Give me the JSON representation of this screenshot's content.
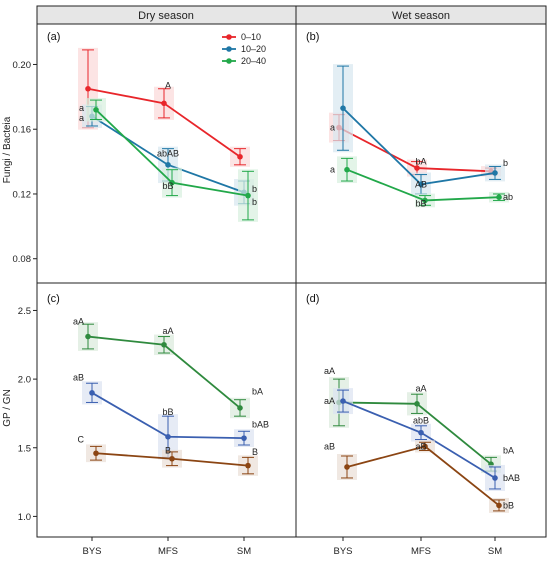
{
  "strips": {
    "dry": "Dry season",
    "wet": "Wet season"
  },
  "panel_tags": {
    "a": "(a)",
    "b": "(b)",
    "c": "(c)",
    "d": "(d)"
  },
  "axis_titles": {
    "top_y": "Fungi / Bacteia",
    "bottom_y": "GP / GN"
  },
  "chart_data": [
    {
      "type": "line",
      "panel": "(a)",
      "strip": "Dry season",
      "ylabel": "Fungi / Bacteia",
      "ylim": [
        0.065,
        0.225
      ],
      "yticks": [
        "0.08",
        "0.12",
        "0.16",
        "0.20"
      ],
      "categories": [
        "BYS",
        "MFS",
        "SM"
      ],
      "legend": {
        "placement": "top-right",
        "labels": [
          "0–10",
          "10–20",
          "20–40"
        ]
      },
      "series": [
        {
          "name": "0–10",
          "color": "#e8262b",
          "values": [
            0.185,
            0.176,
            0.143
          ],
          "err": [
            0.024,
            0.009,
            0.005
          ]
        },
        {
          "name": "10–20",
          "color": "#1f77a6",
          "values": [
            0.168,
            0.138,
            0.121
          ],
          "err": [
            0.006,
            0.01,
            0.007
          ]
        },
        {
          "name": "20–40",
          "color": "#22a84a",
          "values": [
            0.172,
            0.127,
            0.119
          ],
          "err": [
            0.006,
            0.008,
            0.015
          ]
        }
      ],
      "annotations": [
        {
          "text": "a",
          "cat": 0,
          "value": 0.173
        },
        {
          "text": "a",
          "cat": 0,
          "value": 0.167
        },
        {
          "text": "A",
          "cat": 1,
          "value": 0.187
        },
        {
          "text": "abAB",
          "cat": 1,
          "value": 0.145
        },
        {
          "text": "bB",
          "cat": 1,
          "value": 0.125
        },
        {
          "text": "b",
          "cat": 2,
          "value": 0.123
        },
        {
          "text": "b",
          "cat": 2,
          "value": 0.115
        }
      ]
    },
    {
      "type": "line",
      "panel": "(b)",
      "strip": "Wet season",
      "ylim": [
        0.065,
        0.225
      ],
      "categories": [
        "BYS",
        "MFS",
        "SM"
      ],
      "series": [
        {
          "name": "0–10",
          "color": "#e8262b",
          "values": [
            0.161,
            0.136,
            0.134
          ],
          "err": [
            0.008,
            0.004,
            0.002
          ]
        },
        {
          "name": "10–20",
          "color": "#1f77a6",
          "values": [
            0.173,
            0.126,
            0.133
          ],
          "err": [
            0.026,
            0.006,
            0.004
          ]
        },
        {
          "name": "20–40",
          "color": "#22a84a",
          "values": [
            0.135,
            0.116,
            0.118
          ],
          "err": [
            0.007,
            0.003,
            0.002
          ]
        }
      ],
      "annotations": [
        {
          "text": "a",
          "cat": 0,
          "value": 0.161
        },
        {
          "text": "a",
          "cat": 0,
          "value": 0.135
        },
        {
          "text": "bA",
          "cat": 1,
          "value": 0.14
        },
        {
          "text": "AB",
          "cat": 1,
          "value": 0.126
        },
        {
          "text": "bB",
          "cat": 1,
          "value": 0.114
        },
        {
          "text": "b",
          "cat": 2,
          "value": 0.139
        },
        {
          "text": "ab",
          "cat": 2,
          "value": 0.118
        }
      ]
    },
    {
      "type": "line",
      "panel": "(c)",
      "strip": "Dry season",
      "ylabel": "GP / GN",
      "ylim": [
        0.85,
        2.7
      ],
      "yticks": [
        "1.0",
        "1.5",
        "2.0",
        "2.5"
      ],
      "xticks": [
        "BYS",
        "MFS",
        "SM"
      ],
      "categories": [
        "BYS",
        "MFS",
        "SM"
      ],
      "series": [
        {
          "color": "#2f8a3e",
          "values": [
            2.31,
            2.25,
            1.79
          ],
          "err": [
            0.09,
            0.06,
            0.06
          ]
        },
        {
          "color": "#3a5fb0",
          "values": [
            1.9,
            1.58,
            1.57
          ],
          "err": [
            0.07,
            0.15,
            0.05
          ]
        },
        {
          "color": "#8b4513",
          "values": [
            1.46,
            1.42,
            1.37
          ],
          "err": [
            0.05,
            0.05,
            0.06
          ]
        }
      ],
      "annotations": [
        {
          "text": "aA",
          "cat": 0,
          "value": 2.42
        },
        {
          "text": "aB",
          "cat": 0,
          "value": 2.01
        },
        {
          "text": "C",
          "cat": 0,
          "value": 1.56
        },
        {
          "text": "aA",
          "cat": 1,
          "value": 2.35
        },
        {
          "text": "bB",
          "cat": 1,
          "value": 1.76
        },
        {
          "text": "B",
          "cat": 1,
          "value": 1.48
        },
        {
          "text": "bA",
          "cat": 2,
          "value": 1.91
        },
        {
          "text": "bAB",
          "cat": 2,
          "value": 1.67
        },
        {
          "text": "B",
          "cat": 2,
          "value": 1.47
        }
      ]
    },
    {
      "type": "line",
      "panel": "(d)",
      "strip": "Wet season",
      "ylim": [
        0.85,
        2.7
      ],
      "xticks": [
        "BYS",
        "MFS",
        "SM"
      ],
      "categories": [
        "BYS",
        "MFS",
        "SM"
      ],
      "series": [
        {
          "color": "#2f8a3e",
          "values": [
            1.83,
            1.82,
            1.38
          ],
          "err": [
            0.17,
            0.07,
            0.05
          ]
        },
        {
          "color": "#3a5fb0",
          "values": [
            1.84,
            1.61,
            1.28
          ],
          "err": [
            0.08,
            0.05,
            0.08
          ]
        },
        {
          "color": "#8b4513",
          "values": [
            1.36,
            1.51,
            1.08
          ],
          "err": [
            0.08,
            0.03,
            0.04
          ]
        }
      ],
      "annotations": [
        {
          "text": "aA",
          "cat": 0,
          "value": 2.06
        },
        {
          "text": "aA",
          "cat": 0,
          "value": 1.84
        },
        {
          "text": "aB",
          "cat": 0,
          "value": 1.51
        },
        {
          "text": "aA",
          "cat": 1,
          "value": 1.93
        },
        {
          "text": "abB",
          "cat": 1,
          "value": 1.7
        },
        {
          "text": "aB",
          "cat": 1,
          "value": 1.51
        },
        {
          "text": "bA",
          "cat": 2,
          "value": 1.48
        },
        {
          "text": "bAB",
          "cat": 2,
          "value": 1.28
        },
        {
          "text": "bB",
          "cat": 2,
          "value": 1.08
        }
      ]
    }
  ]
}
